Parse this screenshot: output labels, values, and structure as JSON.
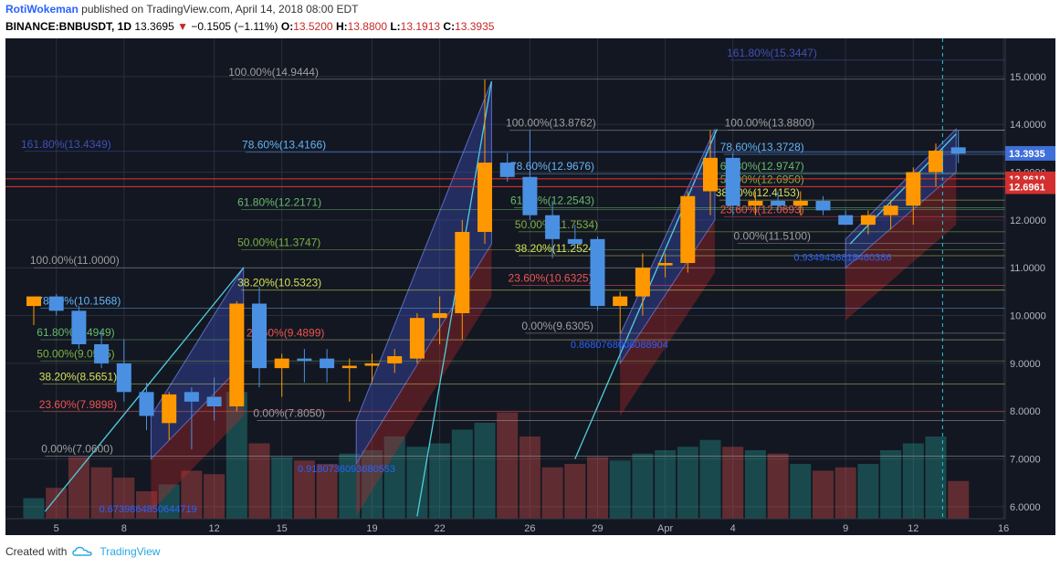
{
  "header": {
    "author": "RotiWokeman",
    "published_text": "published on TradingView.com, April 14, 2018 08:00 EDT",
    "symbol": "BINANCE:BNBUSDT, 1D",
    "last": "13.3695",
    "change": "−0.1505 (−1.11%)",
    "o_label": "O:",
    "o_value": "13.5200",
    "h_label": "H:",
    "h_value": "13.8800",
    "l_label": "L:",
    "l_value": "13.1913",
    "c_label": "C:",
    "c_value": "13.3935"
  },
  "footer": {
    "created_with": "Created with",
    "brand": "TradingView"
  },
  "colors": {
    "background": "#131722",
    "up": "#ff9800",
    "down": "#4a90e2",
    "fib_blue": "#3f51b5",
    "fib_red": "#e53935",
    "grid": "#2a2e39"
  },
  "chart_data": {
    "type": "candlestick",
    "title": "BINANCE:BNBUSDT, 1D",
    "ylim": [
      5.75,
      15.8
    ],
    "price_ticks": [
      "6.0000",
      "7.0000",
      "8.0000",
      "9.0000",
      "10.0000",
      "11.0000",
      "12.0000",
      "13.0000",
      "14.0000",
      "15.0000"
    ],
    "x_ticks": [
      {
        "label": "5",
        "i": 1
      },
      {
        "label": "8",
        "i": 4
      },
      {
        "label": "12",
        "i": 8
      },
      {
        "label": "15",
        "i": 11
      },
      {
        "label": "19",
        "i": 15
      },
      {
        "label": "22",
        "i": 18
      },
      {
        "label": "26",
        "i": 22
      },
      {
        "label": "29",
        "i": 25
      },
      {
        "label": "Apr",
        "i": 28
      },
      {
        "label": "4",
        "i": 31
      },
      {
        "label": "9",
        "i": 36
      },
      {
        "label": "12",
        "i": 39
      },
      {
        "label": "16",
        "i": 43
      }
    ],
    "candles": [
      {
        "o": 10.2,
        "h": 10.4,
        "l": 9.8,
        "c": 10.4
      },
      {
        "o": 10.4,
        "h": 10.45,
        "l": 10.0,
        "c": 10.1
      },
      {
        "o": 10.1,
        "h": 10.2,
        "l": 9.3,
        "c": 9.4
      },
      {
        "o": 9.4,
        "h": 9.7,
        "l": 8.9,
        "c": 9.0
      },
      {
        "o": 9.0,
        "h": 9.5,
        "l": 8.2,
        "c": 8.4
      },
      {
        "o": 8.4,
        "h": 8.6,
        "l": 7.6,
        "c": 7.9
      },
      {
        "o": 7.75,
        "h": 8.4,
        "l": 7.4,
        "c": 8.35
      },
      {
        "o": 8.4,
        "h": 8.5,
        "l": 7.2,
        "c": 8.2
      },
      {
        "o": 8.3,
        "h": 8.7,
        "l": 7.8,
        "c": 8.1
      },
      {
        "o": 8.1,
        "h": 10.3,
        "l": 8.0,
        "c": 10.25
      },
      {
        "o": 10.25,
        "h": 10.6,
        "l": 8.5,
        "c": 8.9
      },
      {
        "o": 8.9,
        "h": 9.2,
        "l": 8.3,
        "c": 9.1
      },
      {
        "o": 9.1,
        "h": 9.3,
        "l": 8.6,
        "c": 9.05
      },
      {
        "o": 9.1,
        "h": 9.3,
        "l": 8.6,
        "c": 8.9
      },
      {
        "o": 8.9,
        "h": 9.1,
        "l": 8.2,
        "c": 8.95
      },
      {
        "o": 8.95,
        "h": 9.2,
        "l": 8.6,
        "c": 9.0
      },
      {
        "o": 9.0,
        "h": 9.3,
        "l": 8.8,
        "c": 9.15
      },
      {
        "o": 9.1,
        "h": 10.05,
        "l": 9.0,
        "c": 9.95
      },
      {
        "o": 9.95,
        "h": 10.4,
        "l": 9.4,
        "c": 10.05
      },
      {
        "o": 10.05,
        "h": 12.0,
        "l": 9.5,
        "c": 11.75
      },
      {
        "o": 11.75,
        "h": 14.94,
        "l": 11.5,
        "c": 13.2
      },
      {
        "o": 13.2,
        "h": 13.4,
        "l": 12.8,
        "c": 12.9
      },
      {
        "o": 12.9,
        "h": 13.87,
        "l": 12.0,
        "c": 12.1
      },
      {
        "o": 12.1,
        "h": 12.4,
        "l": 11.2,
        "c": 11.6
      },
      {
        "o": 11.6,
        "h": 11.9,
        "l": 11.4,
        "c": 11.5
      },
      {
        "o": 11.6,
        "h": 11.65,
        "l": 10.1,
        "c": 10.2
      },
      {
        "o": 10.2,
        "h": 10.5,
        "l": 9.63,
        "c": 10.4
      },
      {
        "o": 10.4,
        "h": 11.3,
        "l": 10.0,
        "c": 11.0
      },
      {
        "o": 11.05,
        "h": 11.3,
        "l": 10.8,
        "c": 11.1
      },
      {
        "o": 11.1,
        "h": 12.6,
        "l": 10.9,
        "c": 12.5
      },
      {
        "o": 12.6,
        "h": 13.88,
        "l": 12.1,
        "c": 13.3
      },
      {
        "o": 13.3,
        "h": 13.4,
        "l": 12.1,
        "c": 12.3
      },
      {
        "o": 12.3,
        "h": 12.6,
        "l": 12.1,
        "c": 12.4
      },
      {
        "o": 12.4,
        "h": 12.6,
        "l": 12.2,
        "c": 12.3
      },
      {
        "o": 12.3,
        "h": 12.6,
        "l": 12.1,
        "c": 12.4
      },
      {
        "o": 12.4,
        "h": 12.5,
        "l": 12.1,
        "c": 12.2
      },
      {
        "o": 12.1,
        "h": 12.2,
        "l": 11.9,
        "c": 11.9
      },
      {
        "o": 11.9,
        "h": 12.2,
        "l": 11.7,
        "c": 12.1
      },
      {
        "o": 12.1,
        "h": 12.4,
        "l": 11.8,
        "c": 12.3
      },
      {
        "o": 12.3,
        "h": 13.1,
        "l": 11.9,
        "c": 13.0
      },
      {
        "o": 13.0,
        "h": 13.6,
        "l": 12.7,
        "c": 13.45
      },
      {
        "o": 13.52,
        "h": 13.88,
        "l": 13.19,
        "c": 13.39
      }
    ],
    "volumes": [
      0.3,
      0.45,
      0.9,
      0.75,
      0.6,
      0.4,
      0.5,
      0.7,
      0.65,
      1.85,
      1.1,
      0.9,
      0.85,
      0.8,
      0.95,
      1.0,
      1.2,
      1.05,
      1.1,
      1.3,
      1.4,
      1.55,
      1.2,
      0.75,
      0.8,
      0.9,
      0.85,
      0.95,
      1.0,
      1.05,
      1.15,
      1.05,
      1.0,
      0.95,
      0.8,
      0.7,
      0.75,
      0.8,
      1.0,
      1.1,
      1.2,
      0.55
    ],
    "fibs": [
      {
        "price": 14.9444,
        "text": "100.00%(14.9444)",
        "xi": 9.2,
        "color": "#9e9e9e"
      },
      {
        "price": 13.4166,
        "text": "78.60%(13.4166)",
        "xi": 9.8,
        "color": "#64b5f6"
      },
      {
        "price": 12.2171,
        "text": "61.80%(12.2171)",
        "xi": 9.6,
        "color": "#66bb6a"
      },
      {
        "price": 11.3747,
        "text": "50.00%(11.3747)",
        "xi": 9.6,
        "color": "#7cb342"
      },
      {
        "price": 10.5323,
        "text": "38.20%(10.5323)",
        "xi": 9.6,
        "color": "#d4e157"
      },
      {
        "price": 9.4899,
        "text": "23.60%(9.4899)",
        "xi": 10.0,
        "color": "#ef5350"
      },
      {
        "price": 7.805,
        "text": "0.00%(7.8050)",
        "xi": 10.3,
        "color": "#9e9e9e"
      },
      {
        "price": 11.0,
        "text": "100.00%(11.0000)",
        "xi": 0.4,
        "color": "#9e9e9e"
      },
      {
        "price": 10.1568,
        "text": "78.60%(10.1568)",
        "xi": 0.7,
        "color": "#64b5f6"
      },
      {
        "price": 9.4949,
        "text": "61.80%(9.4949)",
        "xi": 0.7,
        "color": "#66bb6a"
      },
      {
        "price": 9.0505,
        "text": "50.00%(9.0505)",
        "xi": 0.7,
        "color": "#7cb342"
      },
      {
        "price": 8.5651,
        "text": "38.20%(8.5651)",
        "xi": 0.8,
        "color": "#d4e157"
      },
      {
        "price": 7.9898,
        "text": "23.60%(7.9898)",
        "xi": 0.8,
        "color": "#ef5350"
      },
      {
        "price": 7.06,
        "text": "0.00%(7.0600)",
        "xi": 0.9,
        "color": "#9e9e9e"
      },
      {
        "price": 13.4349,
        "text": "161.80%(13.4349)",
        "xi": 0.0,
        "color": "#3f51b5"
      },
      {
        "price": 13.8762,
        "text": "100.00%(13.8762)",
        "xi": 21.5,
        "color": "#9e9e9e"
      },
      {
        "price": 12.9676,
        "text": "78.60%(12.9676)",
        "xi": 21.7,
        "color": "#64b5f6"
      },
      {
        "price": 12.2543,
        "text": "61.80%(12.2543)",
        "xi": 21.7,
        "color": "#66bb6a"
      },
      {
        "price": 11.7534,
        "text": "50.00%(11.7534)",
        "xi": 21.9,
        "color": "#7cb342"
      },
      {
        "price": 11.2524,
        "text": "38.20%(11.2524)",
        "xi": 21.9,
        "color": "#d4e157"
      },
      {
        "price": 10.6325,
        "text": "23.60%(10.6325)",
        "xi": 21.6,
        "color": "#ef5350"
      },
      {
        "price": 9.6305,
        "text": "0.00%(9.6305)",
        "xi": 22.2,
        "color": "#9e9e9e"
      },
      {
        "price": 15.3447,
        "text": "161.80%(15.3447)",
        "xi": 31.3,
        "color": "#3f51b5"
      },
      {
        "price": 13.88,
        "text": "100.00%(13.8800)",
        "xi": 31.2,
        "color": "#9e9e9e"
      },
      {
        "price": 13.3728,
        "text": "78.60%(13.3728)",
        "xi": 31.0,
        "color": "#64b5f6"
      },
      {
        "price": 12.9747,
        "text": "61.80%(12.9747)",
        "xi": 31.0,
        "color": "#66bb6a"
      },
      {
        "price": 12.695,
        "text": "50.00%(12.6950)",
        "xi": 31.0,
        "color": "#7cb342"
      },
      {
        "price": 12.4153,
        "text": "38.20%(12.4153)",
        "xi": 30.8,
        "color": "#d4e157"
      },
      {
        "price": 12.0693,
        "text": "23.60%(12.0693)",
        "xi": 31.0,
        "color": "#ef5350"
      },
      {
        "price": 11.51,
        "text": "0.00%(11.5100)",
        "xi": 31.6,
        "color": "#9e9e9e"
      }
    ],
    "small_labels": [
      {
        "text": "0.6739864850644719",
        "xi": 2.9,
        "price": 5.88
      },
      {
        "text": "0.9180736093680553",
        "xi": 11.7,
        "price": 6.72
      },
      {
        "text": "0.8680768008088904",
        "xi": 23.8,
        "price": 9.32
      },
      {
        "text": "0.9349436818460386",
        "xi": 33.7,
        "price": 11.15
      }
    ],
    "price_flags": [
      {
        "value": "13.3935",
        "price": 13.3935,
        "color": "#3f6fd8"
      },
      {
        "value": "12.8610",
        "price": 12.861,
        "color": "#d32f2f"
      },
      {
        "value": "12.6961",
        "price": 12.6961,
        "color": "#d32f2f"
      }
    ]
  }
}
